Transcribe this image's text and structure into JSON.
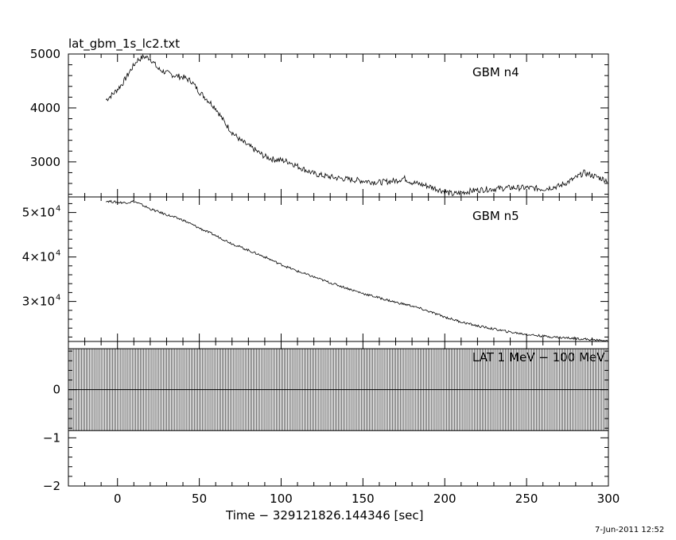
{
  "title": "lat_gbm_1s_lc2.txt",
  "timestamp": "7-Jun-2011 12:52",
  "chart_data": {
    "type": "line",
    "xlabel": "Time − 329121826.144346 [sec]",
    "xlim": [
      -30,
      300
    ],
    "xticks": [
      0,
      50,
      100,
      150,
      200,
      250,
      300
    ],
    "panels": [
      {
        "name": "GBM n4",
        "ylim": [
          2350,
          5000
        ],
        "yticks": [
          "3000",
          "4000",
          "5000"
        ],
        "series": {
          "x": [
            -7,
            -2,
            3,
            8,
            12,
            16,
            20,
            25,
            30,
            35,
            40,
            45,
            50,
            55,
            60,
            65,
            70,
            75,
            80,
            85,
            90,
            95,
            100,
            105,
            110,
            115,
            120,
            130,
            140,
            150,
            160,
            170,
            175,
            180,
            190,
            200,
            205,
            210,
            220,
            230,
            240,
            250,
            260,
            270,
            280,
            285,
            290,
            300
          ],
          "y": [
            4150,
            4280,
            4450,
            4700,
            4880,
            4950,
            4920,
            4720,
            4650,
            4600,
            4570,
            4500,
            4300,
            4150,
            4000,
            3750,
            3550,
            3400,
            3300,
            3200,
            3100,
            3050,
            3030,
            3000,
            2920,
            2850,
            2780,
            2720,
            2680,
            2650,
            2620,
            2650,
            2700,
            2620,
            2550,
            2450,
            2400,
            2430,
            2480,
            2500,
            2520,
            2520,
            2500,
            2550,
            2700,
            2800,
            2750,
            2650
          ]
        }
      },
      {
        "name": "GBM n5",
        "ylim": [
          21000,
          53500
        ],
        "yticks": [
          "3×10",
          "4×10",
          "5×10"
        ],
        "ytick_values": [
          30000,
          40000,
          50000
        ],
        "ytick_exponent": "4",
        "series": {
          "x": [
            -7,
            0,
            5,
            10,
            15,
            20,
            30,
            40,
            50,
            60,
            70,
            80,
            90,
            100,
            110,
            120,
            130,
            140,
            150,
            160,
            170,
            180,
            190,
            200,
            210,
            220,
            230,
            240,
            250,
            260,
            270,
            280,
            290,
            300
          ],
          "y": [
            52600,
            52300,
            52200,
            52500,
            51700,
            50800,
            49500,
            48300,
            46500,
            44800,
            43000,
            41500,
            40000,
            38300,
            36800,
            35500,
            34200,
            33000,
            31800,
            30800,
            29800,
            29000,
            27800,
            26500,
            25400,
            24500,
            23800,
            23100,
            22600,
            22200,
            21900,
            21700,
            21400,
            21000
          ]
        }
      },
      {
        "name": "LAT 1 MeV − 100 MeV",
        "ylim": [
          -2,
          1
        ],
        "yticks": [
          "−2",
          "−1",
          "0"
        ],
        "ytick_values": [
          -2,
          -1,
          0
        ],
        "series": {
          "x_range": [
            -30,
            300
          ],
          "bin_width": 1,
          "value": 0,
          "error": 0.85
        }
      }
    ]
  }
}
